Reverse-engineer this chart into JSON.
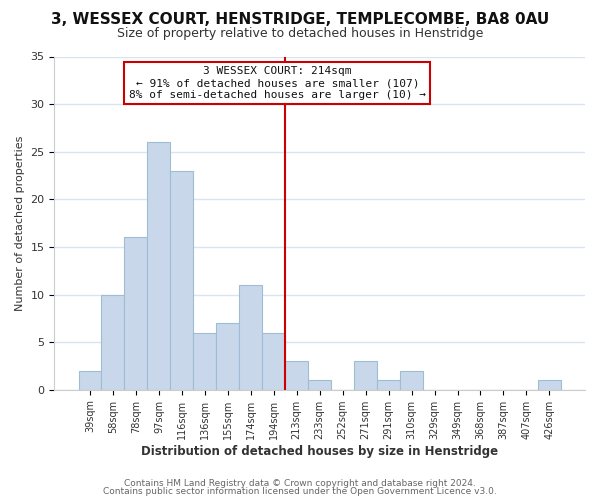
{
  "title": "3, WESSEX COURT, HENSTRIDGE, TEMPLECOMBE, BA8 0AU",
  "subtitle": "Size of property relative to detached houses in Henstridge",
  "xlabel": "Distribution of detached houses by size in Henstridge",
  "ylabel": "Number of detached properties",
  "bar_labels": [
    "39sqm",
    "58sqm",
    "78sqm",
    "97sqm",
    "116sqm",
    "136sqm",
    "155sqm",
    "174sqm",
    "194sqm",
    "213sqm",
    "233sqm",
    "252sqm",
    "271sqm",
    "291sqm",
    "310sqm",
    "329sqm",
    "349sqm",
    "368sqm",
    "387sqm",
    "407sqm",
    "426sqm"
  ],
  "bar_values": [
    2,
    10,
    16,
    26,
    23,
    6,
    7,
    11,
    6,
    3,
    1,
    0,
    3,
    1,
    2,
    0,
    0,
    0,
    0,
    0,
    1
  ],
  "bar_color": "#c8d8ea",
  "bar_edge_color": "#a0bcd4",
  "vline_color": "#cc0000",
  "vline_idx": 9,
  "ylim": [
    0,
    35
  ],
  "yticks": [
    0,
    5,
    10,
    15,
    20,
    25,
    30,
    35
  ],
  "annotation_title": "3 WESSEX COURT: 214sqm",
  "annotation_line1": "← 91% of detached houses are smaller (107)",
  "annotation_line2": "8% of semi-detached houses are larger (10) →",
  "footer_line1": "Contains HM Land Registry data © Crown copyright and database right 2024.",
  "footer_line2": "Contains public sector information licensed under the Open Government Licence v3.0.",
  "bg_color": "#ffffff",
  "grid_color": "#d8e4f0",
  "title_fontsize": 11,
  "subtitle_fontsize": 9
}
